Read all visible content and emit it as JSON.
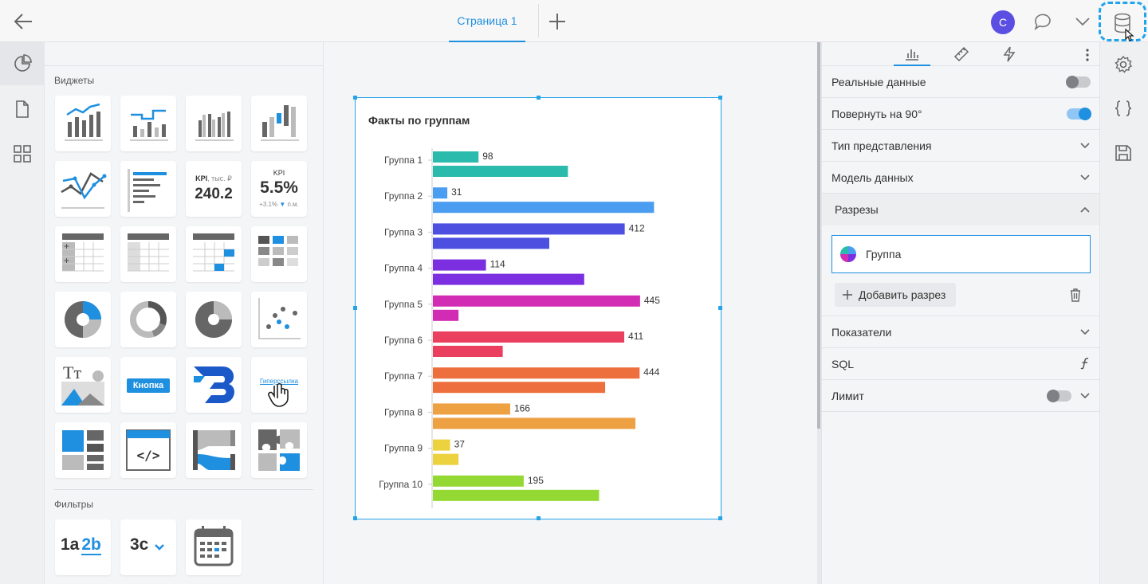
{
  "topbar": {
    "page_tab": "Страница 1",
    "avatar_letter": "С"
  },
  "palette": {
    "widgets_label": "Виджеты",
    "filters_label": "Фильтры",
    "kpi1": {
      "title": "KPI",
      "unit": ", тыс. ₽",
      "value": "240.2"
    },
    "kpi2": {
      "title": "KPI",
      "value": "5.5%",
      "delta": "+3.1%",
      "period": "п.м."
    },
    "button_tile": "Кнопка",
    "link_tile": "Гиперссылка",
    "filter_text": {
      "a": "1a",
      "b": "2b",
      "c": "3c"
    }
  },
  "chart_data": {
    "type": "bar",
    "orientation": "horizontal",
    "title": "Факты по группам",
    "categories": [
      "Группа 1",
      "Группа 2",
      "Группа 3",
      "Группа 4",
      "Группа 5",
      "Группа 6",
      "Группа 7",
      "Группа  8",
      "Группа 9",
      "Группа  10"
    ],
    "series": [
      {
        "values": [
          98,
          31,
          412,
          114,
          445,
          411,
          444,
          166,
          37,
          195
        ],
        "labeled": true
      },
      {
        "values": [
          290,
          475,
          250,
          325,
          55,
          150,
          370,
          435,
          55,
          357
        ],
        "labeled": false
      }
    ],
    "colors": [
      "#2bbbad",
      "#4a9df0",
      "#4c4fdf",
      "#7b2fe0",
      "#d22bb4",
      "#ea3f5f",
      "#ee6f3e",
      "#eea143",
      "#edd23f",
      "#94d833"
    ],
    "xlim": [
      0,
      500
    ],
    "grid": false,
    "legend": "none"
  },
  "props": {
    "real_data": "Реальные данные",
    "real_data_on": false,
    "rotate": "Повернуть на 90°",
    "rotate_on": true,
    "view_type": "Тип представления",
    "data_model": "Модель данных",
    "slices": "Разрезы",
    "slice_item": "Группа",
    "add_slice": "Добавить разрез",
    "measures": "Показатели",
    "sql": "SQL",
    "limit": "Лимит",
    "limit_on": false
  },
  "colors": {
    "accent": "#1f8fe0",
    "avatar": "#5b4ee3",
    "db_highlight": "#1ea4ee"
  }
}
